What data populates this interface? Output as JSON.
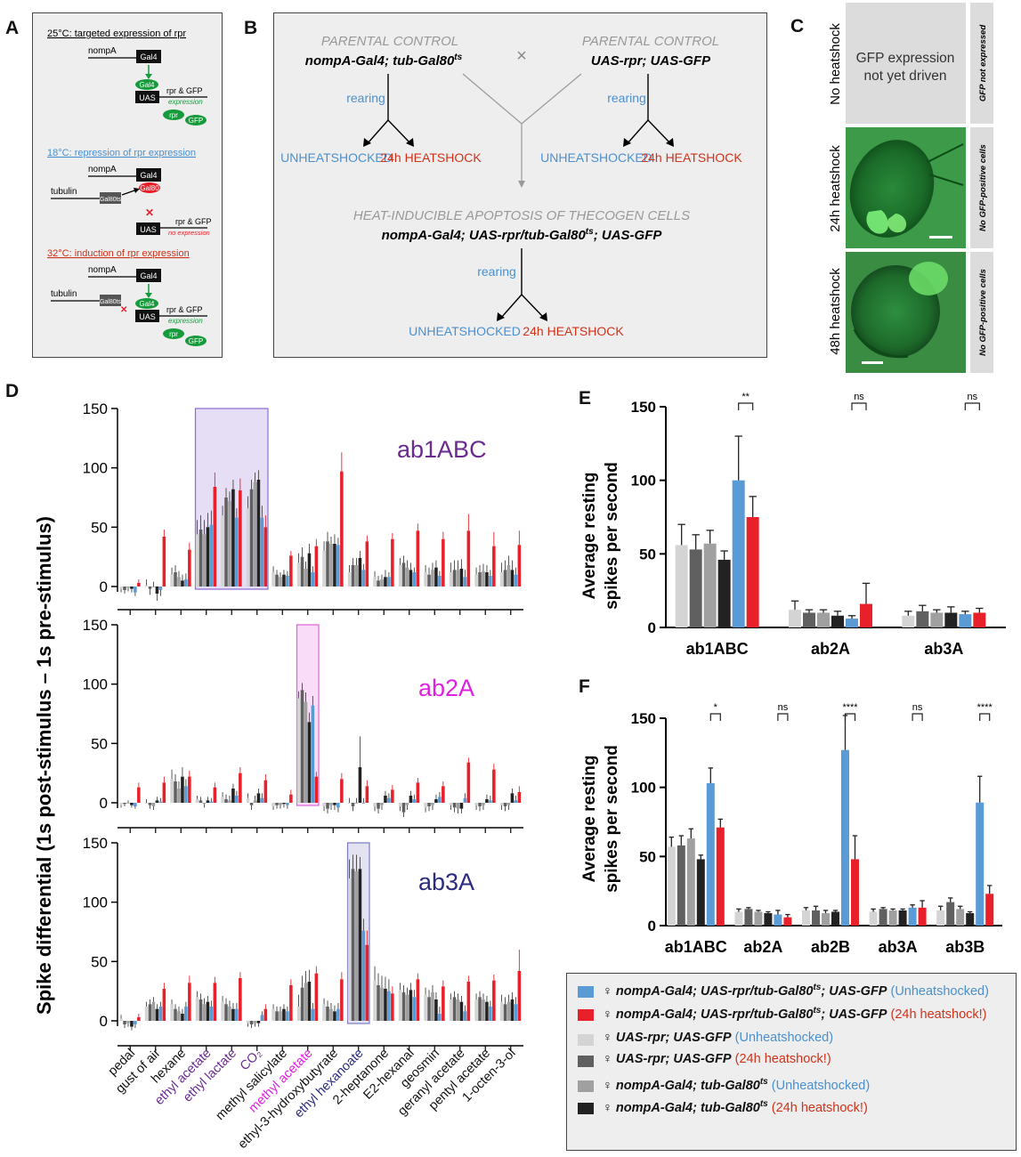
{
  "panel_labels": {
    "a": "A",
    "b": "B",
    "c": "C",
    "d": "D",
    "e": "E",
    "f": "F"
  },
  "colors": {
    "blue": "#5b9bd5",
    "red": "#e8202a",
    "c_light": "#d4d4d4",
    "c_dark": "#606060",
    "c_mid": "#a0a0a0",
    "c_black": "#222222",
    "green": "#179a3c",
    "box_bg": "#eeeeee",
    "temp_blue": "#4a90d0",
    "temp_red": "#d0321a",
    "purple": "#6a2a90",
    "magenta": "#e020e0",
    "navy": "#2a2a80"
  },
  "panel_a": {
    "s1": {
      "title": "25°C: targeted expression of rpr",
      "nompA": "nompA",
      "gal4": "Gal4",
      "gal4_b": "Gal4",
      "uas": "UAS",
      "rpr_gfp": "rpr & GFP",
      "expr": "expression",
      "rpr": "rpr",
      "gfp": "GFP"
    },
    "s2": {
      "title": "18°C: repression of rpr expression",
      "nompA": "nompA",
      "gal4": "Gal4",
      "gal80": "Gal80",
      "tubulin": "tubulin",
      "gal80ts": "Gal80ts",
      "rpr_gfp": "rpr & GFP",
      "uas": "UAS",
      "noexpr": "no expression",
      "x": "✕"
    },
    "s3": {
      "title": "32°C: induction of rpr expression",
      "nompA": "nompA",
      "gal4": "Gal4",
      "gal4_b": "Gal4",
      "tubulin": "tubulin",
      "gal80ts": "Gal80ts",
      "uas": "UAS",
      "rpr_gfp": "rpr & GFP",
      "expr": "expression",
      "rpr": "rpr",
      "gfp": "GFP",
      "x": "✕"
    }
  },
  "panel_b": {
    "parental_control_1": "PARENTAL CONTROL",
    "genotype_1": "nompA-Gal4; tub-Gal80",
    "genotype_1_sup": "ts",
    "parental_control_2": "PARENTAL CONTROL",
    "genotype_2": "UAS-rpr; UAS-GFP",
    "cross": "×",
    "rearing_1": "rearing",
    "rearing_2": "rearing",
    "rearing_3": "rearing",
    "unheat_1": "UNHEATSHOCKED",
    "heat_1": "24h HEATSHOCK",
    "unheat_2": "UNHEATSHOCKED",
    "heat_2": "24h HEATSHOCK",
    "apoptosis": "HEAT-INDUCIBLE APOPTOSIS OF THECOGEN CELLS",
    "genotype_3a": "nompA-Gal4; UAS-rpr/tub-Gal80",
    "genotype_3_sup": "ts",
    "genotype_3b": "; UAS-GFP",
    "unheat_3": "UNHEATSHOCKED",
    "heat_3": "24h HEATSHOCK"
  },
  "panel_c": {
    "rows": [
      {
        "label": "No heatshock",
        "side": "GFP not expressed",
        "text_1": "GFP expression",
        "text_2": "not yet driven"
      },
      {
        "label": "24h heatshock",
        "side": "No GFP-positive cells"
      },
      {
        "label": "48h heatshock",
        "side": "No GFP-positive cells"
      }
    ]
  },
  "panel_d": {
    "ylabel": "Spike differential (1s post-stimulus – 1s pre-stimulus)",
    "odors": [
      {
        "name": "pedal",
        "color": "#111"
      },
      {
        "name": "gust of air",
        "color": "#111"
      },
      {
        "name": "hexane",
        "color": "#111"
      },
      {
        "name": "ethyl acetate",
        "color": "#6a2a90"
      },
      {
        "name": "ethyl lactate",
        "color": "#6a2a90"
      },
      {
        "name": "CO₂",
        "color": "#6a2a90"
      },
      {
        "name": "methyl salicylate",
        "color": "#111"
      },
      {
        "name": "methyl acetate",
        "color": "#e020e0"
      },
      {
        "name": "ethyl-3-hydroxybutyrate",
        "color": "#111"
      },
      {
        "name": "ethyl hexanoate",
        "color": "#2a2a80"
      },
      {
        "name": "2-heptanone",
        "color": "#111"
      },
      {
        "name": "E2-hexanal",
        "color": "#111"
      },
      {
        "name": "geosmin",
        "color": "#111"
      },
      {
        "name": "geranyl acetate",
        "color": "#111"
      },
      {
        "name": "pentyl acetate",
        "color": "#111"
      },
      {
        "name": "1-octen-3-ol",
        "color": "#111"
      }
    ]
  },
  "chart_data": [
    {
      "type": "bar",
      "title": "ab1ABC",
      "title_color": "#6a2a90",
      "ylim": [
        0,
        150
      ],
      "yticks": [
        0,
        50,
        100,
        150
      ],
      "series_order": [
        "UAS-rpr unheat",
        "UAS-rpr heat",
        "Gal4 unheat",
        "Gal4 heat",
        "Exp unheat",
        "Exp heat"
      ],
      "highlight": {
        "from": 3,
        "to": 5,
        "color": "#8a6ad0"
      },
      "values": [
        [
          -2,
          -3,
          -1,
          -2,
          -5,
          3
        ],
        [
          1,
          -2,
          0,
          -6,
          -3,
          42
        ],
        [
          10,
          12,
          8,
          5,
          6,
          31
        ],
        [
          44,
          48,
          44,
          50,
          52,
          84
        ],
        [
          60,
          75,
          72,
          82,
          58,
          81
        ],
        [
          66,
          82,
          88,
          90,
          58,
          50
        ],
        [
          12,
          10,
          8,
          10,
          9,
          26
        ],
        [
          20,
          25,
          15,
          28,
          12,
          34
        ],
        [
          30,
          38,
          36,
          36,
          35,
          97
        ],
        [
          12,
          18,
          18,
          24,
          14,
          38
        ],
        [
          8,
          5,
          6,
          8,
          8,
          40
        ],
        [
          18,
          20,
          16,
          14,
          12,
          47
        ],
        [
          12,
          10,
          14,
          16,
          9,
          40
        ],
        [
          12,
          14,
          14,
          15,
          8,
          47
        ],
        [
          10,
          12,
          13,
          12,
          9,
          34
        ],
        [
          12,
          14,
          18,
          14,
          10,
          35
        ]
      ],
      "errors": [
        [
          3,
          3,
          3,
          3,
          3,
          3
        ],
        [
          5,
          5,
          4,
          6,
          5,
          6
        ],
        [
          6,
          6,
          5,
          5,
          5,
          6
        ],
        [
          12,
          12,
          12,
          12,
          12,
          12
        ],
        [
          8,
          8,
          8,
          8,
          8,
          10
        ],
        [
          10,
          8,
          8,
          8,
          10,
          10
        ],
        [
          5,
          4,
          4,
          4,
          4,
          4
        ],
        [
          8,
          8,
          6,
          8,
          5,
          6
        ],
        [
          8,
          8,
          6,
          8,
          6,
          16
        ],
        [
          6,
          6,
          6,
          6,
          5,
          5
        ],
        [
          5,
          4,
          4,
          6,
          4,
          5
        ],
        [
          6,
          6,
          6,
          6,
          4,
          6
        ],
        [
          6,
          6,
          6,
          6,
          4,
          6
        ],
        [
          8,
          8,
          8,
          8,
          6,
          14
        ],
        [
          6,
          6,
          6,
          6,
          5,
          12
        ],
        [
          8,
          8,
          8,
          8,
          6,
          12
        ]
      ]
    },
    {
      "type": "bar",
      "title": "ab2A",
      "title_color": "#e020e0",
      "ylim": [
        0,
        150
      ],
      "yticks": [
        0,
        50,
        100,
        150
      ],
      "highlight": {
        "from": 7,
        "to": 7,
        "color": "#e060e0"
      },
      "values": [
        [
          -2,
          -1,
          0,
          -2,
          -3,
          13
        ],
        [
          0,
          -2,
          -3,
          2,
          1,
          17
        ],
        [
          20,
          18,
          12,
          22,
          14,
          22
        ],
        [
          3,
          2,
          -1,
          2,
          1,
          13
        ],
        [
          5,
          3,
          2,
          12,
          6,
          25
        ],
        [
          4,
          -2,
          2,
          8,
          4,
          19
        ],
        [
          -3,
          -2,
          -2,
          -1,
          -2,
          7
        ],
        [
          88,
          95,
          85,
          68,
          82,
          22
        ],
        [
          -3,
          -5,
          -2,
          -2,
          -4,
          20
        ],
        [
          0,
          -3,
          0,
          30,
          0,
          14
        ],
        [
          -3,
          -5,
          -2,
          6,
          4,
          11
        ],
        [
          -3,
          -8,
          -2,
          6,
          3,
          17
        ],
        [
          -4,
          -3,
          -2,
          3,
          5,
          14
        ],
        [
          -2,
          -4,
          -5,
          -5,
          4,
          34
        ],
        [
          -2,
          -3,
          -2,
          3,
          2,
          28
        ],
        [
          -2,
          -3,
          -2,
          8,
          2,
          9
        ]
      ],
      "errors": [
        [
          2,
          2,
          2,
          2,
          2,
          4
        ],
        [
          3,
          3,
          3,
          3,
          3,
          5
        ],
        [
          8,
          6,
          6,
          8,
          6,
          5
        ],
        [
          3,
          3,
          3,
          3,
          3,
          4
        ],
        [
          4,
          4,
          4,
          4,
          4,
          5
        ],
        [
          4,
          4,
          4,
          4,
          4,
          5
        ],
        [
          3,
          3,
          3,
          3,
          3,
          4
        ],
        [
          6,
          6,
          8,
          8,
          8,
          4
        ],
        [
          4,
          4,
          4,
          4,
          4,
          5
        ],
        [
          4,
          4,
          4,
          26,
          4,
          5
        ],
        [
          4,
          4,
          4,
          4,
          4,
          4
        ],
        [
          4,
          4,
          4,
          4,
          4,
          4
        ],
        [
          4,
          4,
          4,
          4,
          4,
          4
        ],
        [
          4,
          4,
          4,
          4,
          4,
          4
        ],
        [
          4,
          4,
          4,
          4,
          4,
          5
        ],
        [
          4,
          4,
          4,
          4,
          4,
          5
        ]
      ]
    },
    {
      "type": "bar",
      "title": "ab3A",
      "title_color": "#2a2a80",
      "ylim": [
        0,
        150
      ],
      "yticks": [
        0,
        50,
        100,
        150
      ],
      "highlight": {
        "from": 9,
        "to": 9,
        "color": "#7a7ac0"
      },
      "values": [
        [
          2,
          -3,
          -2,
          -5,
          -3,
          3
        ],
        [
          12,
          14,
          16,
          10,
          12,
          27
        ],
        [
          14,
          10,
          8,
          6,
          12,
          32
        ],
        [
          20,
          18,
          14,
          16,
          12,
          32
        ],
        [
          16,
          14,
          12,
          10,
          10,
          36
        ],
        [
          -2,
          -3,
          -2,
          -2,
          5,
          10
        ],
        [
          10,
          8,
          8,
          10,
          8,
          30
        ],
        [
          12,
          28,
          32,
          33,
          10,
          40
        ],
        [
          14,
          12,
          10,
          8,
          10,
          35
        ],
        [
          120,
          128,
          126,
          128,
          76,
          64
        ],
        [
          34,
          30,
          28,
          27,
          25,
          23
        ],
        [
          26,
          24,
          22,
          26,
          20,
          35
        ],
        [
          22,
          20,
          24,
          18,
          6,
          29
        ],
        [
          18,
          20,
          18,
          16,
          8,
          33
        ],
        [
          18,
          20,
          18,
          16,
          12,
          34
        ],
        [
          16,
          14,
          16,
          18,
          14,
          42
        ]
      ],
      "errors": [
        [
          3,
          3,
          3,
          3,
          3,
          3
        ],
        [
          4,
          4,
          4,
          4,
          4,
          5
        ],
        [
          4,
          4,
          4,
          4,
          4,
          6
        ],
        [
          5,
          5,
          5,
          5,
          5,
          5
        ],
        [
          5,
          5,
          5,
          5,
          5,
          5
        ],
        [
          3,
          3,
          3,
          3,
          3,
          4
        ],
        [
          4,
          4,
          4,
          4,
          4,
          5
        ],
        [
          10,
          10,
          10,
          10,
          5,
          6
        ],
        [
          5,
          5,
          5,
          5,
          5,
          6
        ],
        [
          16,
          12,
          14,
          10,
          10,
          12
        ],
        [
          12,
          10,
          10,
          10,
          10,
          6
        ],
        [
          6,
          6,
          6,
          6,
          6,
          5
        ],
        [
          6,
          6,
          6,
          6,
          6,
          5
        ],
        [
          5,
          5,
          5,
          5,
          5,
          5
        ],
        [
          5,
          5,
          5,
          5,
          5,
          5
        ],
        [
          6,
          6,
          6,
          6,
          6,
          18
        ]
      ]
    },
    {
      "type": "bar",
      "panel": "E",
      "ylabel_1": "Average resting",
      "ylabel_2": "spikes per second",
      "ylim": [
        0,
        150
      ],
      "yticks": [
        0,
        50,
        100,
        150
      ],
      "categories": [
        "ab1ABC",
        "ab2A",
        "ab3A"
      ],
      "values": [
        [
          56,
          53,
          57,
          46,
          100,
          75
        ],
        [
          12,
          10,
          10,
          8,
          6,
          16
        ],
        [
          8,
          11,
          10,
          10,
          9,
          10
        ]
      ],
      "errors": [
        [
          14,
          10,
          9,
          6,
          30,
          14
        ],
        [
          6,
          2,
          2,
          3,
          2,
          14
        ],
        [
          3,
          4,
          2,
          4,
          2,
          3
        ]
      ],
      "significance": [
        "**",
        "ns",
        "ns"
      ]
    },
    {
      "type": "bar",
      "panel": "F",
      "ylabel_1": "Average resting",
      "ylabel_2": "spikes per second",
      "ylim": [
        0,
        150
      ],
      "yticks": [
        0,
        50,
        100,
        150
      ],
      "categories": [
        "ab1ABC",
        "ab2A",
        "ab2B",
        "ab3A",
        "ab3B"
      ],
      "values": [
        [
          57,
          58,
          63,
          48,
          103,
          71
        ],
        [
          10,
          12,
          10,
          9,
          8,
          6
        ],
        [
          11,
          11,
          9,
          10,
          127,
          48
        ],
        [
          10,
          12,
          11,
          11,
          13,
          13
        ],
        [
          11,
          17,
          12,
          9,
          89,
          23
        ]
      ],
      "errors": [
        [
          7,
          7,
          7,
          3,
          11,
          6
        ],
        [
          2,
          1,
          1,
          1,
          3,
          2
        ],
        [
          2,
          3,
          2,
          1,
          25,
          17
        ],
        [
          2,
          1,
          1,
          1,
          2,
          5
        ],
        [
          3,
          3,
          2,
          1,
          19,
          6
        ]
      ],
      "significance": [
        "*",
        "ns",
        "****",
        "ns",
        "****"
      ]
    }
  ],
  "legend": [
    {
      "color": "#5b9bd5",
      "genotype": "nompA-Gal4; UAS-rpr/tub-Gal80",
      "sup": "ts",
      "tail": "; UAS-GFP",
      "cond": "(Unheatshocked)",
      "cond_color": "#4a90d0"
    },
    {
      "color": "#e8202a",
      "genotype": "nompA-Gal4; UAS-rpr/tub-Gal80",
      "sup": "ts",
      "tail": "; UAS-GFP",
      "cond": "(24h heatshock!)",
      "cond_color": "#d0321a"
    },
    {
      "color": "#d4d4d4",
      "genotype": "UAS-rpr; UAS-GFP",
      "sup": "",
      "tail": "",
      "cond": "(Unheatshocked)",
      "cond_color": "#4a90d0"
    },
    {
      "color": "#606060",
      "genotype": "UAS-rpr; UAS-GFP",
      "sup": "",
      "tail": "",
      "cond": "(24h heatshock!)",
      "cond_color": "#d0321a"
    },
    {
      "color": "#a0a0a0",
      "genotype": "nompA-Gal4; tub-Gal80",
      "sup": "ts",
      "tail": "",
      "cond": "(Unheatshocked)",
      "cond_color": "#4a90d0"
    },
    {
      "color": "#222222",
      "genotype": "nompA-Gal4; tub-Gal80",
      "sup": "ts",
      "tail": "",
      "cond": "(24h heatshock!)",
      "cond_color": "#d0321a"
    }
  ],
  "legend_symbol": "♀"
}
